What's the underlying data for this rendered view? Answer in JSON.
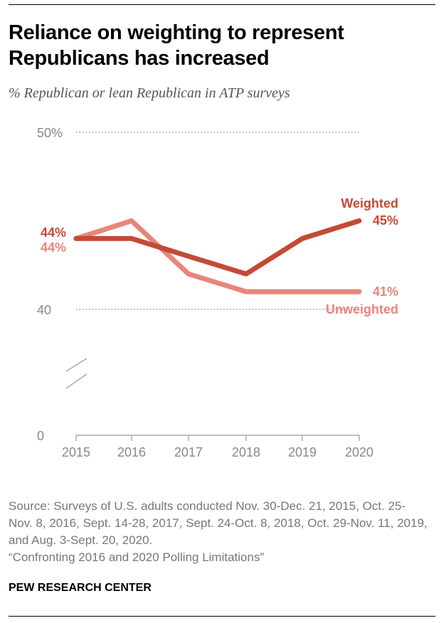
{
  "title": "Reliance on weighting to represent Republicans has increased",
  "subtitle": "% Republican or lean Republican in ATP surveys",
  "source": "Source: Surveys of U.S. adults conducted Nov. 30-Dec. 21, 2015, Oct. 25-Nov. 8, 2016, Sept. 14-28, 2017, Sept. 24-Oct. 8, 2018, Oct. 29-Nov. 11, 2019, and Aug. 3-Sept. 20, 2020.",
  "report": "“Confronting 2016 and 2020 Polling Limitations”",
  "brand": "PEW RESEARCH CENTER",
  "chart_data": {
    "type": "line",
    "categories": [
      "2015",
      "2016",
      "2017",
      "2018",
      "2019",
      "2020"
    ],
    "y_ticks": [
      {
        "value": 0,
        "label": "0"
      },
      {
        "value": 40,
        "label": "40"
      },
      {
        "value": 50,
        "label": "50%"
      }
    ],
    "axis_break": true,
    "grid": "dotted at 40 and 50",
    "series": [
      {
        "name": "Weighted",
        "color": "#c44a36",
        "values": [
          44,
          44,
          43,
          42,
          44,
          45
        ],
        "start_label": "44%",
        "end_label": "45%"
      },
      {
        "name": "Unweighted",
        "color": "#e8857a",
        "values": [
          44,
          45,
          42,
          41,
          41,
          41
        ],
        "start_label": "44%",
        "end_label": "41%"
      }
    ]
  }
}
